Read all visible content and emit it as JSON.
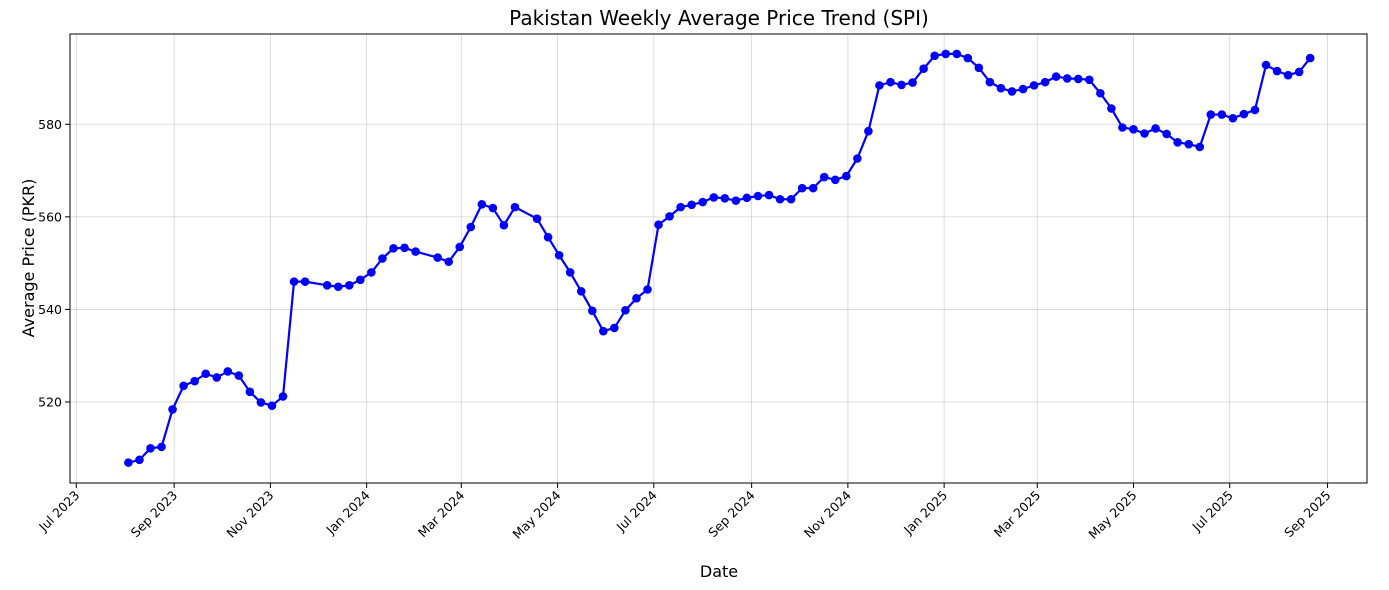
{
  "chart_data": {
    "type": "line",
    "title": "Pakistan Weekly Average Price Trend (SPI)",
    "xlabel": "Date",
    "ylabel": "Average Price (PKR)",
    "x_ticks": [
      {
        "date": "2023-07-01",
        "label": "Jul 2023"
      },
      {
        "date": "2023-09-01",
        "label": "Sep 2023"
      },
      {
        "date": "2023-11-01",
        "label": "Nov 2023"
      },
      {
        "date": "2024-01-01",
        "label": "Jan 2024"
      },
      {
        "date": "2024-03-01",
        "label": "Mar 2024"
      },
      {
        "date": "2024-05-01",
        "label": "May 2024"
      },
      {
        "date": "2024-07-01",
        "label": "Jul 2024"
      },
      {
        "date": "2024-09-01",
        "label": "Sep 2024"
      },
      {
        "date": "2024-11-01",
        "label": "Nov 2024"
      },
      {
        "date": "2025-01-01",
        "label": "Jan 2025"
      },
      {
        "date": "2025-03-01",
        "label": "Mar 2025"
      },
      {
        "date": "2025-05-01",
        "label": "May 2025"
      },
      {
        "date": "2025-07-01",
        "label": "Jul 2025"
      },
      {
        "date": "2025-09-01",
        "label": "Sep 2025"
      }
    ],
    "y_ticks": [
      520,
      540,
      560,
      580
    ],
    "xlim": [
      "2023-06-27",
      "2025-09-26"
    ],
    "ylim": [
      502.5,
      599.5
    ],
    "grid": true,
    "series_color": "#0000ff",
    "x": [
      "2023-08-03",
      "2023-08-10",
      "2023-08-17",
      "2023-08-24",
      "2023-08-31",
      "2023-09-07",
      "2023-09-14",
      "2023-09-21",
      "2023-09-28",
      "2023-10-05",
      "2023-10-12",
      "2023-10-19",
      "2023-10-26",
      "2023-11-02",
      "2023-11-09",
      "2023-11-16",
      "2023-11-23",
      "2023-12-07",
      "2023-12-14",
      "2023-12-21",
      "2023-12-28",
      "2024-01-04",
      "2024-01-11",
      "2024-01-18",
      "2024-01-25",
      "2024-02-01",
      "2024-02-15",
      "2024-02-22",
      "2024-02-29",
      "2024-03-07",
      "2024-03-14",
      "2024-03-21",
      "2024-03-28",
      "2024-04-04",
      "2024-04-18",
      "2024-04-25",
      "2024-05-02",
      "2024-05-09",
      "2024-05-16",
      "2024-05-23",
      "2024-05-30",
      "2024-06-06",
      "2024-06-13",
      "2024-06-20",
      "2024-06-27",
      "2024-07-04",
      "2024-07-11",
      "2024-07-18",
      "2024-07-25",
      "2024-08-01",
      "2024-08-08",
      "2024-08-15",
      "2024-08-22",
      "2024-08-29",
      "2024-09-05",
      "2024-09-12",
      "2024-09-19",
      "2024-09-26",
      "2024-10-03",
      "2024-10-10",
      "2024-10-17",
      "2024-10-24",
      "2024-10-31",
      "2024-11-07",
      "2024-11-14",
      "2024-11-21",
      "2024-11-28",
      "2024-12-05",
      "2024-12-12",
      "2024-12-19",
      "2024-12-26",
      "2025-01-02",
      "2025-01-09",
      "2025-01-16",
      "2025-01-23",
      "2025-01-30",
      "2025-02-06",
      "2025-02-13",
      "2025-02-20",
      "2025-02-27",
      "2025-03-06",
      "2025-03-13",
      "2025-03-20",
      "2025-03-27",
      "2025-04-03",
      "2025-04-10",
      "2025-04-17",
      "2025-04-24",
      "2025-05-01",
      "2025-05-08",
      "2025-05-15",
      "2025-05-22",
      "2025-05-29",
      "2025-06-05",
      "2025-06-12",
      "2025-06-19",
      "2025-06-26",
      "2025-07-03",
      "2025-07-10",
      "2025-07-17",
      "2025-07-24",
      "2025-07-31",
      "2025-08-07",
      "2025-08-14",
      "2025-08-21"
    ],
    "values": [
      506.9,
      507.5,
      510.0,
      510.3,
      518.4,
      523.5,
      524.5,
      526.1,
      525.3,
      526.6,
      525.7,
      522.2,
      519.9,
      519.2,
      521.2,
      546.0,
      546.0,
      545.2,
      544.9,
      545.2,
      546.4,
      548.0,
      551.0,
      553.2,
      553.3,
      552.5,
      551.2,
      550.3,
      553.5,
      557.8,
      562.7,
      561.9,
      558.2,
      562.1,
      559.6,
      555.6,
      551.7,
      548.0,
      543.9,
      539.7,
      535.3,
      536.0,
      539.8,
      542.4,
      544.3,
      558.3,
      560.1,
      562.1,
      562.6,
      563.2,
      564.2,
      564.0,
      563.5,
      564.1,
      564.5,
      564.7,
      563.8,
      563.8,
      566.2,
      566.2,
      568.6,
      568.0,
      568.8,
      572.6,
      578.5,
      588.4,
      589.1,
      588.5,
      589.0,
      592.0,
      594.8,
      595.2,
      595.2,
      594.3,
      592.2,
      589.1,
      587.8,
      587.1,
      587.6,
      588.4,
      589.1,
      590.3,
      589.9,
      589.8,
      589.6,
      586.7,
      583.4,
      579.3,
      578.9,
      578.0,
      579.1,
      577.9,
      576.1,
      575.7,
      575.1,
      582.1,
      582.1,
      581.3,
      582.2,
      583.1,
      592.8,
      591.5,
      590.6,
      591.3,
      594.3
    ]
  }
}
